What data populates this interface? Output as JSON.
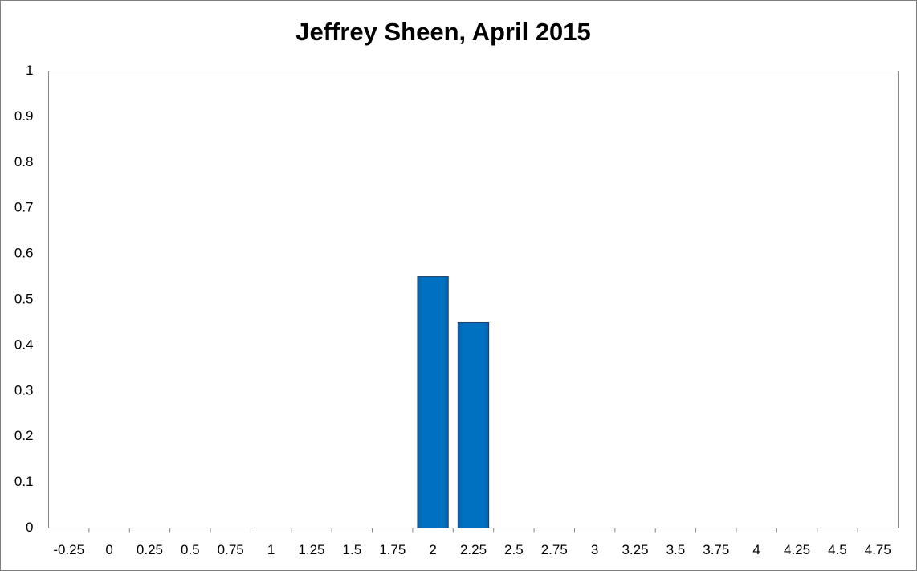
{
  "chart_data": {
    "type": "bar",
    "title": "Jeffrey Sheen, April 2015",
    "categories": [
      "-0.25",
      "0",
      "0.25",
      "0.5",
      "0.75",
      "1",
      "1.25",
      "1.5",
      "1.75",
      "2",
      "2.25",
      "2.5",
      "2.75",
      "3",
      "3.25",
      "3.5",
      "3.75",
      "4",
      "4.25",
      "4.5",
      "4.75"
    ],
    "values": [
      0,
      0,
      0,
      0,
      0,
      0,
      0,
      0,
      0,
      0.55,
      0.45,
      0,
      0,
      0,
      0,
      0,
      0,
      0,
      0,
      0,
      0
    ],
    "color": "#0070c0",
    "ylim": [
      0,
      1
    ],
    "yticks": [
      0,
      0.1,
      0.2,
      0.3,
      0.4,
      0.5,
      0.6,
      0.7,
      0.8,
      0.9,
      1
    ],
    "grid": false
  }
}
